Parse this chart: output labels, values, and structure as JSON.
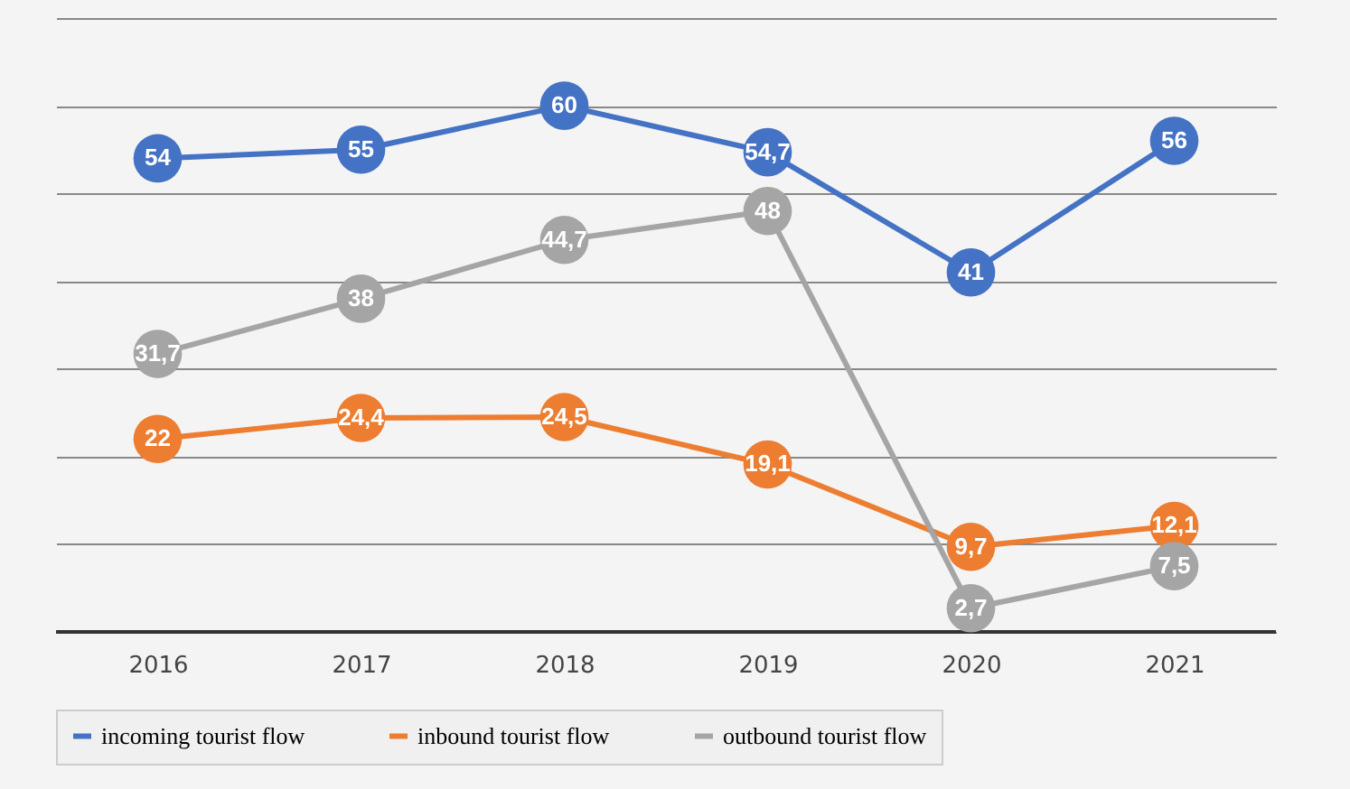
{
  "chart_data": {
    "type": "line",
    "categories": [
      "2016",
      "2017",
      "2018",
      "2019",
      "2020",
      "2021"
    ],
    "series": [
      {
        "name": "incoming tourist flow",
        "color": "#4472c4",
        "values": [
          54,
          55,
          60,
          54.7,
          41,
          56
        ],
        "value_labels": [
          "54",
          "55",
          "60",
          "54,7",
          "41",
          "56"
        ]
      },
      {
        "name": "inbound tourist flow",
        "color": "#ed7d31",
        "values": [
          22,
          24.4,
          24.5,
          19.1,
          9.7,
          12.1
        ],
        "value_labels": [
          "22",
          "24,4",
          "24,5",
          "19,1",
          "9,7",
          "12,1"
        ]
      },
      {
        "name": "outbound tourist flow",
        "color": "#a5a5a5",
        "values": [
          31.7,
          38,
          44.7,
          48,
          2.7,
          7.5
        ],
        "value_labels": [
          "31,7",
          "38",
          "44,7",
          "48",
          "2,7",
          "7,5"
        ]
      }
    ],
    "ylim": [
      0,
      70
    ],
    "yticks": [
      {
        "value": 0,
        "label": null
      },
      {
        "value": 10,
        "label": null
      },
      {
        "value": 20,
        "label": null
      },
      {
        "value": 30,
        "label": null
      },
      {
        "value": 40,
        "label": null
      },
      {
        "value": 50,
        "label": null
      },
      {
        "value": 60,
        "label": null
      },
      {
        "value": 70,
        "label": null
      }
    ],
    "tick_labels": "x",
    "grid": "y",
    "legend": "bottom",
    "marker": "circle",
    "line_style": "solid"
  }
}
